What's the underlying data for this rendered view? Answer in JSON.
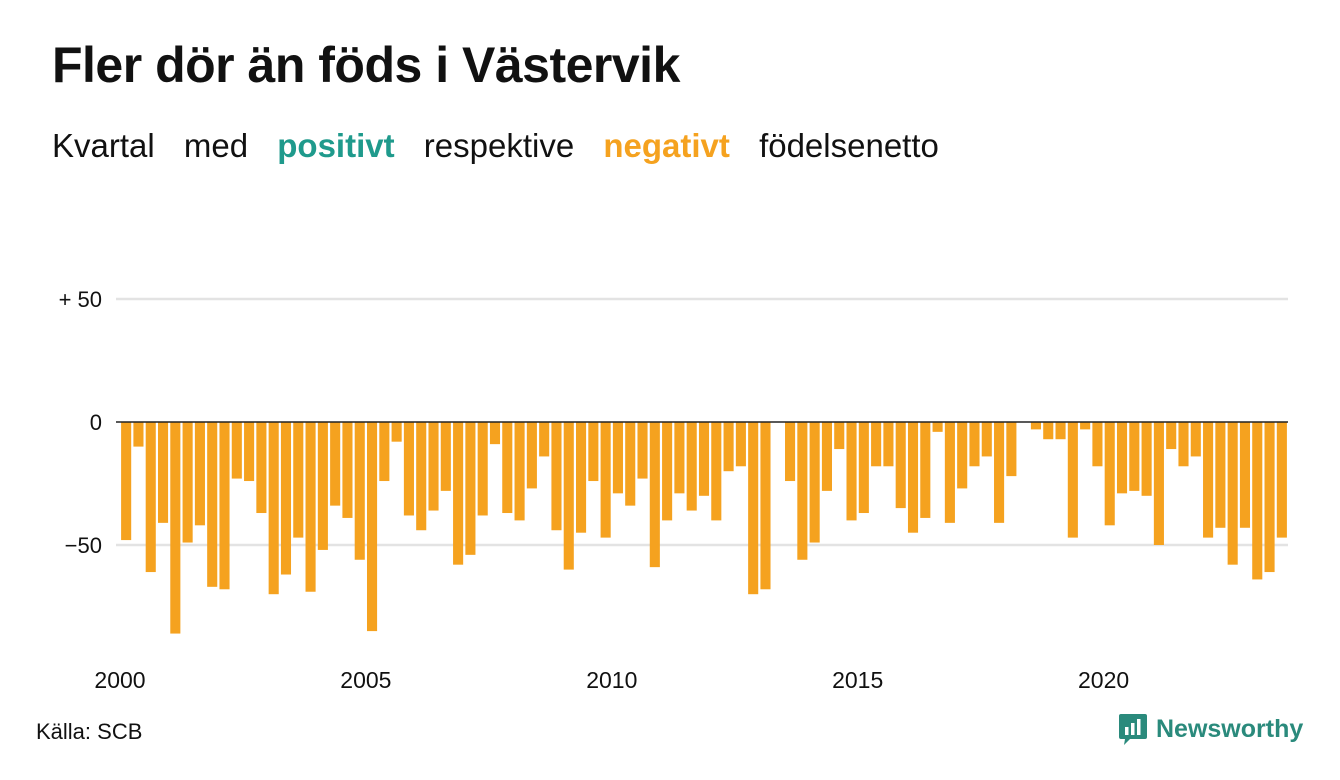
{
  "title": "Fler dör än föds i Västervik",
  "subtitle": {
    "part1": "Kvartal",
    "part2": "med",
    "positive": "positivt",
    "part3": "respektive",
    "negative": "negativt",
    "part4": "födelsenetto"
  },
  "source": "Källa: SCB",
  "brand": "Newsworthy",
  "colors": {
    "positive": "#1f9a8c",
    "negative": "#f5a21f",
    "grid": "#e3e3e3",
    "zero": "#222222",
    "brand": "#2a8a7c"
  },
  "chart_data": {
    "type": "bar",
    "ylim": [
      -90,
      60
    ],
    "yticks": [
      {
        "value": 50,
        "label": "+ 50"
      },
      {
        "value": 0,
        "label": "0"
      },
      {
        "value": -50,
        "label": "−50"
      }
    ],
    "xticks": [
      {
        "year": 2000,
        "label": "2000"
      },
      {
        "year": 2005,
        "label": "2005"
      },
      {
        "year": 2010,
        "label": "2010"
      },
      {
        "year": 2015,
        "label": "2015"
      },
      {
        "year": 2020,
        "label": "2020"
      }
    ],
    "start_year": 2000,
    "quarters_per_year": 4,
    "values": [
      -48,
      -10,
      -61,
      -41,
      -86,
      -49,
      -42,
      -67,
      -68,
      -23,
      -24,
      -37,
      -70,
      -62,
      -47,
      -69,
      -52,
      -34,
      -39,
      -56,
      -85,
      -24,
      -8,
      -38,
      -44,
      -36,
      -28,
      -58,
      -54,
      -38,
      -9,
      -37,
      -40,
      -27,
      -14,
      -44,
      -60,
      -45,
      -24,
      -47,
      -29,
      -34,
      -23,
      -59,
      -40,
      -29,
      -36,
      -30,
      -40,
      -20,
      -18,
      -70,
      -68,
      0,
      -24,
      -56,
      -49,
      -28,
      -11,
      -40,
      -37,
      -18,
      -18,
      -35,
      -45,
      -39,
      -4,
      -41,
      -27,
      -18,
      -14,
      -41,
      -22,
      0,
      -3,
      -7,
      -7,
      -47,
      -3,
      -18,
      -42,
      -29,
      -28,
      -30,
      -50,
      -11,
      -18,
      -14,
      -47,
      -43,
      -58,
      -43,
      -64,
      -61,
      -47
    ]
  }
}
